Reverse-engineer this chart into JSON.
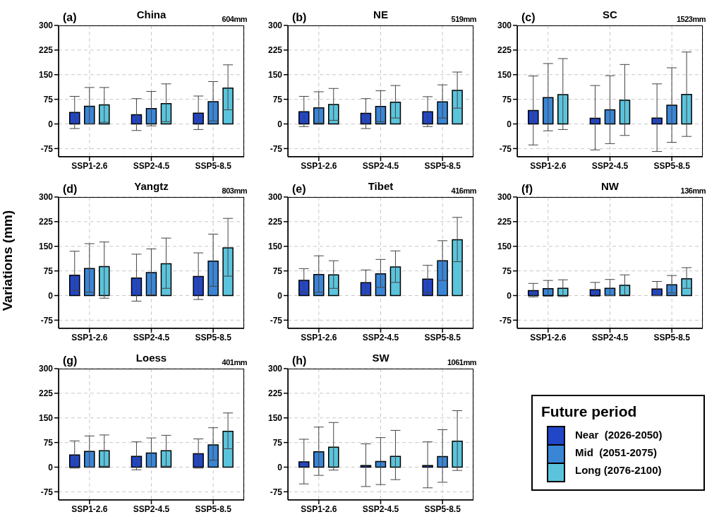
{
  "chart_data": [
    {
      "type": "bar",
      "title": "China",
      "annotations": [
        "(a)",
        "604mm"
      ],
      "categories": [
        "SSP1-2.6",
        "SSP2-4.5",
        "SSP5-8.5"
      ],
      "ylim": [
        -100,
        300
      ],
      "yticks": [
        -75,
        0,
        75,
        150,
        225,
        300
      ],
      "grid": true,
      "series": [
        {
          "color": "#2246c8",
          "values": [
            35,
            28,
            33
          ],
          "errors": [
            [
              -14,
              84
            ],
            [
              -20,
              77
            ],
            [
              -17,
              85
            ]
          ]
        },
        {
          "color": "#3a86d6",
          "values": [
            54,
            47,
            68
          ],
          "errors": [
            [
              0,
              111
            ],
            [
              -6,
              99
            ],
            [
              9,
              129
            ]
          ]
        },
        {
          "color": "#5bc4dc",
          "values": [
            58,
            62,
            109
          ],
          "errors": [
            [
              5,
              111
            ],
            [
              7,
              122
            ],
            [
              43,
              180
            ]
          ]
        }
      ]
    },
    {
      "type": "bar",
      "title": "NE",
      "annotations": [
        "(b)",
        "519mm"
      ],
      "categories": [
        "SSP1-2.6",
        "SSP2-4.5",
        "SSP5-8.5"
      ],
      "ylim": [
        -100,
        300
      ],
      "yticks": [
        -75,
        0,
        75,
        150,
        225,
        300
      ],
      "grid": true,
      "series": [
        {
          "color": "#2246c8",
          "values": [
            37,
            32,
            37
          ],
          "errors": [
            [
              -8,
              84
            ],
            [
              -14,
              77
            ],
            [
              -8,
              83
            ]
          ]
        },
        {
          "color": "#3a86d6",
          "values": [
            49,
            53,
            67
          ],
          "errors": [
            [
              3,
              98
            ],
            [
              7,
              101
            ],
            [
              18,
              119
            ]
          ]
        },
        {
          "color": "#5bc4dc",
          "values": [
            59,
            66,
            102
          ],
          "errors": [
            [
              11,
              108
            ],
            [
              18,
              117
            ],
            [
              48,
              158
            ]
          ]
        }
      ]
    },
    {
      "type": "bar",
      "title": "SC",
      "annotations": [
        "(c)",
        "1523mm"
      ],
      "categories": [
        "SSP1-2.6",
        "SSP2-4.5",
        "SSP5-8.5"
      ],
      "ylim": [
        -100,
        300
      ],
      "yticks": [
        -75,
        0,
        75,
        150,
        225,
        300
      ],
      "grid": true,
      "series": [
        {
          "color": "#2246c8",
          "values": [
            41,
            17,
            18
          ],
          "errors": [
            [
              -64,
              146
            ],
            [
              -79,
              117
            ],
            [
              -84,
              122
            ]
          ]
        },
        {
          "color": "#3a86d6",
          "values": [
            80,
            43,
            57
          ],
          "errors": [
            [
              -21,
              184
            ],
            [
              -60,
              147
            ],
            [
              -56,
              171
            ]
          ]
        },
        {
          "color": "#5bc4dc",
          "values": [
            89,
            72,
            90
          ],
          "errors": [
            [
              -17,
              199
            ],
            [
              -35,
              181
            ],
            [
              -38,
              219
            ]
          ]
        }
      ]
    },
    {
      "type": "bar",
      "title": "Yangtz",
      "ylabel": "Variations (mm)",
      "annotations": [
        "(d)",
        "803mm"
      ],
      "categories": [
        "SSP1-2.6",
        "SSP2-4.5",
        "SSP5-8.5"
      ],
      "ylim": [
        -100,
        300
      ],
      "yticks": [
        -75,
        0,
        75,
        150,
        225,
        300
      ],
      "grid": true,
      "series": [
        {
          "color": "#2246c8",
          "values": [
            62,
            53,
            58
          ],
          "errors": [
            [
              15,
              135
            ],
            [
              -17,
              126
            ],
            [
              -12,
              130
            ]
          ]
        },
        {
          "color": "#3a86d6",
          "values": [
            82,
            70,
            105
          ],
          "errors": [
            [
              10,
              158
            ],
            [
              2,
              142
            ],
            [
              28,
              187
            ]
          ]
        },
        {
          "color": "#5bc4dc",
          "values": [
            88,
            97,
            145
          ],
          "errors": [
            [
              -8,
              163
            ],
            [
              22,
              175
            ],
            [
              59,
              235
            ]
          ]
        }
      ]
    },
    {
      "type": "bar",
      "title": "Tibet",
      "annotations": [
        "(e)",
        "416mm"
      ],
      "categories": [
        "SSP1-2.6",
        "SSP2-4.5",
        "SSP5-8.5"
      ],
      "ylim": [
        -100,
        300
      ],
      "yticks": [
        -75,
        0,
        75,
        150,
        225,
        300
      ],
      "grid": true,
      "series": [
        {
          "color": "#2246c8",
          "values": [
            46,
            39,
            50
          ],
          "errors": [
            [
              10,
              82
            ],
            [
              2,
              78
            ],
            [
              8,
              92
            ]
          ]
        },
        {
          "color": "#3a86d6",
          "values": [
            64,
            66,
            106
          ],
          "errors": [
            [
              10,
              121
            ],
            [
              25,
              110
            ],
            [
              46,
              167
            ]
          ]
        },
        {
          "color": "#5bc4dc",
          "values": [
            63,
            87,
            170
          ],
          "errors": [
            [
              22,
              106
            ],
            [
              40,
              136
            ],
            [
              103,
              238
            ]
          ]
        }
      ]
    },
    {
      "type": "bar",
      "title": "NW",
      "annotations": [
        "(f)",
        "136mm"
      ],
      "categories": [
        "SSP1-2.6",
        "SSP2-4.5",
        "SSP5-8.5"
      ],
      "ylim": [
        -100,
        300
      ],
      "yticks": [
        -75,
        0,
        75,
        150,
        225,
        300
      ],
      "grid": true,
      "series": [
        {
          "color": "#2246c8",
          "values": [
            15,
            18,
            20
          ],
          "errors": [
            [
              -4,
              37
            ],
            [
              -2,
              40
            ],
            [
              0,
              43
            ]
          ]
        },
        {
          "color": "#3a86d6",
          "values": [
            21,
            22,
            33
          ],
          "errors": [
            [
              -2,
              46
            ],
            [
              0,
              49
            ],
            [
              8,
              61
            ]
          ]
        },
        {
          "color": "#5bc4dc",
          "values": [
            22,
            31,
            51
          ],
          "errors": [
            [
              -3,
              48
            ],
            [
              2,
              63
            ],
            [
              22,
              85
            ]
          ]
        }
      ]
    },
    {
      "type": "bar",
      "title": "Loess",
      "annotations": [
        "(g)",
        "401mm"
      ],
      "categories": [
        "SSP1-2.6",
        "SSP2-4.5",
        "SSP5-8.5"
      ],
      "ylim": [
        -100,
        300
      ],
      "yticks": [
        -75,
        0,
        75,
        150,
        225,
        300
      ],
      "grid": true,
      "series": [
        {
          "color": "#2246c8",
          "values": [
            37,
            33,
            41
          ],
          "errors": [
            [
              -3,
              80
            ],
            [
              -8,
              77
            ],
            [
              -3,
              86
            ]
          ]
        },
        {
          "color": "#3a86d6",
          "values": [
            48,
            43,
            68
          ],
          "errors": [
            [
              0,
              95
            ],
            [
              0,
              89
            ],
            [
              21,
              120
            ]
          ]
        },
        {
          "color": "#5bc4dc",
          "values": [
            50,
            50,
            109
          ],
          "errors": [
            [
              3,
              98
            ],
            [
              3,
              97
            ],
            [
              56,
              165
            ]
          ]
        }
      ]
    },
    {
      "type": "bar",
      "title": "SW",
      "annotations": [
        "(h)",
        "1061mm"
      ],
      "categories": [
        "SSP1-2.6",
        "SSP2-4.5",
        "SSP5-8.5"
      ],
      "ylim": [
        -100,
        300
      ],
      "yticks": [
        -75,
        0,
        75,
        150,
        225,
        300
      ],
      "grid": true,
      "legend": "right",
      "legend_title": "Future period",
      "series": [
        {
          "name": "Near  (2026-2050)",
          "color": "#2246c8",
          "values": [
            16,
            5,
            5
          ],
          "errors": [
            [
              -51,
              85
            ],
            [
              -59,
              71
            ],
            [
              -63,
              77
            ]
          ]
        },
        {
          "name": "Mid  (2051-2075)",
          "color": "#3a86d6",
          "values": [
            47,
            17,
            32
          ],
          "errors": [
            [
              -25,
              122
            ],
            [
              -53,
              90
            ],
            [
              -46,
              114
            ]
          ]
        },
        {
          "name": "Long (2076-2100)",
          "color": "#5bc4dc",
          "values": [
            61,
            33,
            79
          ],
          "errors": [
            [
              -9,
              136
            ],
            [
              -38,
              112
            ],
            [
              -10,
              172
            ]
          ]
        }
      ]
    }
  ]
}
